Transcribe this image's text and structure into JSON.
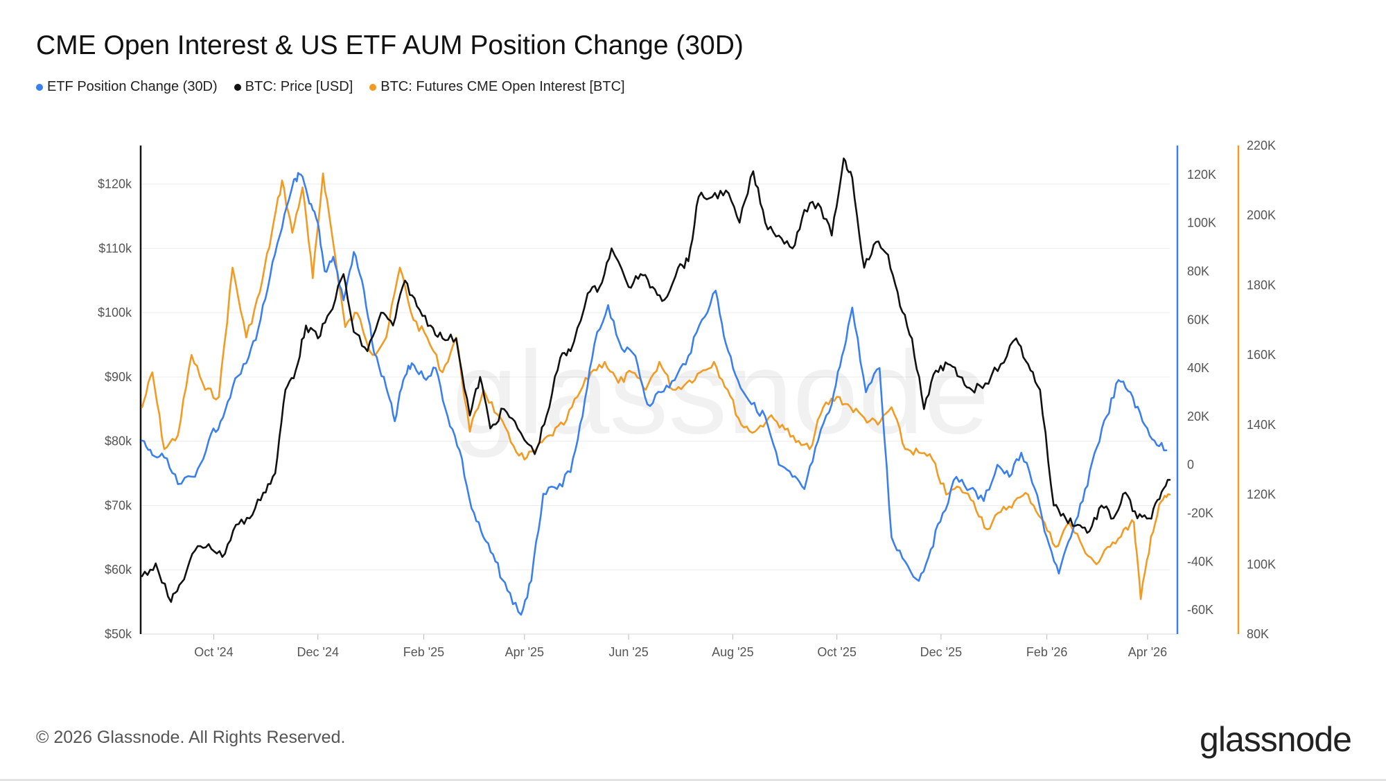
{
  "title": "CME Open Interest & US ETF AUM Position Change (30D)",
  "legend": [
    {
      "label": "ETF Position Change (30D)",
      "color": "#3a7ff0"
    },
    {
      "label": "BTC: Price [USD]",
      "color": "#111111"
    },
    {
      "label": "BTC: Futures CME Open Interest [BTC]",
      "color": "#f39a23"
    }
  ],
  "watermark": "glassnode",
  "footer": "© 2026 Glassnode. All Rights Reserved.",
  "brand": "glassnode",
  "chart_data": {
    "type": "line",
    "x_axis": {
      "ticks": [
        "Oct '24",
        "Dec '24",
        "Feb '25",
        "Apr '25",
        "Jun '25",
        "Aug '25",
        "Oct '25",
        "Dec '25",
        "Feb '26",
        "Apr '26"
      ],
      "range": [
        "2024-08-20",
        "2026-04-14"
      ]
    },
    "y_left": {
      "label": "",
      "range": [
        50000,
        126000
      ],
      "ticks": [
        "$50k",
        "$60k",
        "$70k",
        "$80k",
        "$90k",
        "$100k",
        "$110k",
        "$120k"
      ],
      "tick_values": [
        50000,
        60000,
        70000,
        80000,
        90000,
        100000,
        110000,
        120000
      ],
      "color": "#111111"
    },
    "y_right_blue": {
      "label": "",
      "range": [
        -70000,
        132000
      ],
      "ticks": [
        "-60K",
        "-40K",
        "-20K",
        "0",
        "20K",
        "40K",
        "60K",
        "80K",
        "100K",
        "120K"
      ],
      "tick_values": [
        -60000,
        -40000,
        -20000,
        0,
        20000,
        40000,
        60000,
        80000,
        100000,
        120000
      ],
      "color": "#3a7ff0"
    },
    "y_right_orange": {
      "label": "",
      "range": [
        80000,
        220000
      ],
      "ticks": [
        "80K",
        "100K",
        "120K",
        "140K",
        "160K",
        "180K",
        "200K",
        "220K"
      ],
      "tick_values": [
        80000,
        100000,
        120000,
        140000,
        160000,
        180000,
        200000,
        220000
      ],
      "color": "#f39a23"
    },
    "grid": true,
    "legend_position": "top-left",
    "series": [
      {
        "name": "ETF Position Change (30D)",
        "color": "#3a7ff0",
        "axis": "y_right_blue",
        "x": [
          "2024-08-20",
          "2024-08-26",
          "2024-09-02",
          "2024-09-10",
          "2024-09-20",
          "2024-09-28",
          "2024-10-05",
          "2024-10-12",
          "2024-10-20",
          "2024-10-27",
          "2024-11-03",
          "2024-11-10",
          "2024-11-17",
          "2024-11-21",
          "2024-11-26",
          "2024-12-01",
          "2024-12-05",
          "2024-12-10",
          "2024-12-16",
          "2024-12-22",
          "2024-12-28",
          "2025-01-03",
          "2025-01-10",
          "2025-01-15",
          "2025-01-20",
          "2025-01-25",
          "2025-02-01",
          "2025-02-08",
          "2025-02-15",
          "2025-02-22",
          "2025-03-01",
          "2025-03-08",
          "2025-03-15",
          "2025-03-22",
          "2025-03-30",
          "2025-04-05",
          "2025-04-12",
          "2025-04-20",
          "2025-04-28",
          "2025-05-05",
          "2025-05-12",
          "2025-05-20",
          "2025-05-28",
          "2025-06-05",
          "2025-06-12",
          "2025-06-20",
          "2025-06-28",
          "2025-07-06",
          "2025-07-14",
          "2025-07-22",
          "2025-07-28",
          "2025-08-04",
          "2025-08-12",
          "2025-08-20",
          "2025-08-28",
          "2025-09-05",
          "2025-09-12",
          "2025-09-20",
          "2025-09-28",
          "2025-10-04",
          "2025-10-10",
          "2025-10-18",
          "2025-10-26",
          "2025-11-02",
          "2025-11-10",
          "2025-11-18",
          "2025-11-25",
          "2025-12-02",
          "2025-12-10",
          "2025-12-18",
          "2025-12-26",
          "2026-01-03",
          "2026-01-10",
          "2026-01-17",
          "2026-01-25",
          "2026-02-01",
          "2026-02-08",
          "2026-02-15",
          "2026-02-22",
          "2026-03-01",
          "2026-03-08",
          "2026-03-15",
          "2026-03-22",
          "2026-03-29",
          "2026-04-05",
          "2026-04-12"
        ],
        "values": [
          10000,
          4000,
          3000,
          -8000,
          -5000,
          10000,
          18000,
          32000,
          42000,
          56000,
          78000,
          98000,
          118000,
          120000,
          108000,
          100000,
          80000,
          86000,
          68000,
          88000,
          72000,
          46000,
          32000,
          18000,
          35000,
          42000,
          36000,
          40000,
          20000,
          6000,
          -18000,
          -30000,
          -40000,
          -52000,
          -62000,
          -48000,
          -12000,
          -10000,
          -3000,
          20000,
          50000,
          66000,
          48000,
          45000,
          25000,
          30000,
          35000,
          45000,
          60000,
          72000,
          50000,
          35000,
          25000,
          20000,
          0,
          -5000,
          -10000,
          10000,
          25000,
          45000,
          65000,
          30000,
          40000,
          -30000,
          -40000,
          -48000,
          -35000,
          -20000,
          -5000,
          -10000,
          -15000,
          0,
          -5000,
          5000,
          -10000,
          -30000,
          -45000,
          -30000,
          -15000,
          5000,
          20000,
          35000,
          30000,
          18000,
          10000,
          6000
        ],
        "values_note": ""
      },
      {
        "name": "BTC: Price [USD]",
        "color": "#111111",
        "axis": "y_left",
        "x": [
          "2024-08-20",
          "2024-08-28",
          "2024-09-06",
          "2024-09-12",
          "2024-09-20",
          "2024-09-28",
          "2024-10-06",
          "2024-10-14",
          "2024-10-22",
          "2024-10-30",
          "2024-11-06",
          "2024-11-12",
          "2024-11-18",
          "2024-11-24",
          "2024-12-01",
          "2024-12-08",
          "2024-12-16",
          "2024-12-22",
          "2024-12-30",
          "2025-01-07",
          "2025-01-14",
          "2025-01-21",
          "2025-01-28",
          "2025-02-05",
          "2025-02-12",
          "2025-02-20",
          "2025-02-28",
          "2025-03-06",
          "2025-03-12",
          "2025-03-20",
          "2025-03-28",
          "2025-04-07",
          "2025-04-14",
          "2025-04-22",
          "2025-04-28",
          "2025-05-08",
          "2025-05-15",
          "2025-05-22",
          "2025-06-01",
          "2025-06-08",
          "2025-06-15",
          "2025-06-22",
          "2025-06-30",
          "2025-07-06",
          "2025-07-12",
          "2025-07-20",
          "2025-07-28",
          "2025-08-05",
          "2025-08-13",
          "2025-08-20",
          "2025-08-28",
          "2025-09-05",
          "2025-09-12",
          "2025-09-20",
          "2025-09-28",
          "2025-10-05",
          "2025-10-10",
          "2025-10-17",
          "2025-10-24",
          "2025-10-31",
          "2025-11-07",
          "2025-11-14",
          "2025-11-21",
          "2025-11-28",
          "2025-12-05",
          "2025-12-12",
          "2025-12-19",
          "2025-12-27",
          "2026-01-05",
          "2026-01-14",
          "2026-01-21",
          "2026-01-28",
          "2026-02-05",
          "2026-02-12",
          "2026-02-19",
          "2026-02-26",
          "2026-03-05",
          "2026-03-12",
          "2026-03-19",
          "2026-03-26",
          "2026-04-02",
          "2026-04-08",
          "2026-04-14"
        ],
        "values": [
          59000,
          61000,
          55000,
          58000,
          63000,
          64000,
          62000,
          67000,
          68000,
          72000,
          75000,
          88000,
          91000,
          98000,
          96000,
          100000,
          106000,
          97000,
          94000,
          100000,
          98000,
          105000,
          101000,
          98000,
          96000,
          96000,
          84000,
          90000,
          82000,
          85000,
          82000,
          78000,
          84000,
          93000,
          94000,
          103000,
          104000,
          110000,
          104000,
          106000,
          104000,
          102000,
          107000,
          108000,
          118000,
          118000,
          119000,
          114000,
          122000,
          114000,
          112000,
          110000,
          116000,
          117000,
          112000,
          124000,
          121000,
          107000,
          111000,
          109000,
          101000,
          96000,
          85000,
          91000,
          92000,
          90000,
          88000,
          89000,
          92000,
          96000,
          92000,
          88000,
          70000,
          68000,
          67000,
          66000,
          70000,
          68000,
          72000,
          68000,
          68000,
          71000,
          74000
        ],
        "values_note": ""
      },
      {
        "name": "BTC: Futures CME Open Interest [BTC]",
        "color": "#f39a23",
        "axis": "y_right_orange",
        "x": [
          "2024-08-20",
          "2024-08-26",
          "2024-09-02",
          "2024-09-10",
          "2024-09-18",
          "2024-09-26",
          "2024-10-04",
          "2024-10-12",
          "2024-10-20",
          "2024-10-28",
          "2024-11-04",
          "2024-11-10",
          "2024-11-16",
          "2024-11-22",
          "2024-11-28",
          "2024-12-04",
          "2024-12-10",
          "2024-12-17",
          "2024-12-24",
          "2025-01-02",
          "2025-01-10",
          "2025-01-18",
          "2025-01-26",
          "2025-02-03",
          "2025-02-12",
          "2025-02-20",
          "2025-02-28",
          "2025-03-08",
          "2025-03-16",
          "2025-03-24",
          "2025-04-01",
          "2025-04-08",
          "2025-04-16",
          "2025-04-24",
          "2025-05-02",
          "2025-05-10",
          "2025-05-18",
          "2025-05-26",
          "2025-06-03",
          "2025-06-11",
          "2025-06-19",
          "2025-06-27",
          "2025-07-05",
          "2025-07-13",
          "2025-07-21",
          "2025-07-29",
          "2025-08-06",
          "2025-08-14",
          "2025-08-22",
          "2025-08-30",
          "2025-09-07",
          "2025-09-15",
          "2025-09-23",
          "2025-10-01",
          "2025-10-09",
          "2025-10-17",
          "2025-10-25",
          "2025-11-02",
          "2025-11-10",
          "2025-11-18",
          "2025-11-26",
          "2025-12-04",
          "2025-12-12",
          "2025-12-20",
          "2025-12-28",
          "2026-01-05",
          "2026-01-13",
          "2026-01-21",
          "2026-01-29",
          "2026-02-06",
          "2026-02-14",
          "2026-02-22",
          "2026-03-02",
          "2026-03-10",
          "2026-03-18",
          "2026-03-24",
          "2026-03-28",
          "2026-04-03",
          "2026-04-09",
          "2026-04-14"
        ],
        "values": [
          145000,
          155000,
          133000,
          137000,
          160000,
          150000,
          148000,
          185000,
          165000,
          178000,
          195000,
          210000,
          195000,
          208000,
          182000,
          212000,
          192000,
          168000,
          172000,
          160000,
          165000,
          185000,
          170000,
          165000,
          155000,
          165000,
          138000,
          150000,
          143000,
          135000,
          130000,
          133000,
          137000,
          140000,
          148000,
          155000,
          158000,
          152000,
          155000,
          150000,
          158000,
          150000,
          152000,
          155000,
          158000,
          150000,
          140000,
          138000,
          142000,
          140000,
          135000,
          133000,
          145000,
          148000,
          145000,
          142000,
          140000,
          145000,
          133000,
          132000,
          130000,
          120000,
          122000,
          118000,
          110000,
          115000,
          118000,
          120000,
          113000,
          105000,
          112000,
          105000,
          100000,
          105000,
          110000,
          112000,
          90000,
          108000,
          118000,
          120000
        ],
        "values_note": ""
      }
    ]
  }
}
